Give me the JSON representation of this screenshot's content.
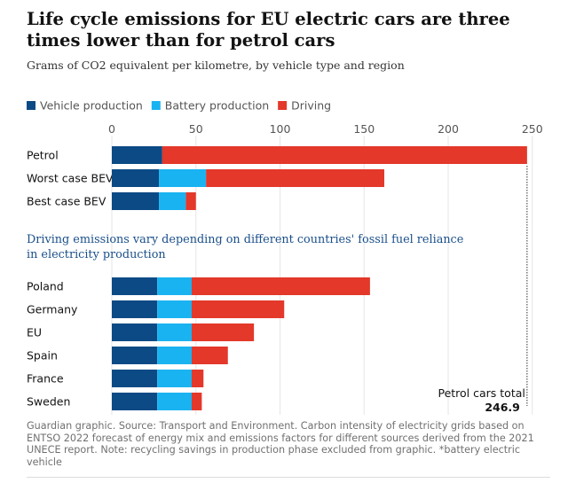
{
  "title": "Life cycle emissions for EU electric cars are three times lower than for petrol cars",
  "subtitle": "Grams of CO2 equivalent per kilometre, by vehicle type and region",
  "legend": [
    {
      "label": "Vehicle production",
      "color": "#0c4a85"
    },
    {
      "label": "Battery production",
      "color": "#1ab3f1"
    },
    {
      "label": "Driving",
      "color": "#e3382a"
    }
  ],
  "chart_data": {
    "type": "bar",
    "orientation": "horizontal",
    "stacked": true,
    "xlim": [
      0,
      250
    ],
    "xticks": [
      0,
      50,
      100,
      150,
      200,
      250
    ],
    "grid": true,
    "legend_position": "top-left",
    "groups": [
      {
        "heading": "",
        "categories": [
          "Petrol",
          "Worst case BEV*",
          "Best case BEV"
        ],
        "series": [
          {
            "name": "Vehicle production",
            "values": [
              30,
              28,
              28
            ]
          },
          {
            "name": "Battery production",
            "values": [
              0,
              28,
              16
            ]
          },
          {
            "name": "Driving",
            "values": [
              216.9,
              106,
              6
            ]
          }
        ]
      },
      {
        "heading": "Driving emissions vary depending on different countries' fossil fuel reliance in electricity production",
        "categories": [
          "Poland",
          "Germany",
          "EU",
          "Spain",
          "France",
          "Sweden"
        ],
        "series": [
          {
            "name": "Vehicle production",
            "values": [
              27,
              27,
              27,
              27,
              27,
              27
            ]
          },
          {
            "name": "Battery production",
            "values": [
              20.5,
              20.5,
              20.5,
              20.5,
              20.5,
              20.5
            ]
          },
          {
            "name": "Driving",
            "values": [
              106,
              55,
              37,
              21.5,
              7,
              6
            ]
          }
        ]
      }
    ],
    "reference_line": {
      "value": 246.9,
      "label": "Petrol cars total",
      "value_label": "246.9"
    }
  },
  "footer": "Guardian graphic. Source: Transport and Environment. Carbon intensity of electricity grids based on ENTSO 2022 forecast of energy mix and emissions factors for different sources derived from the 2021 UNECE report. Note: recycling savings in production phase excluded from graphic. *battery electric vehicle"
}
